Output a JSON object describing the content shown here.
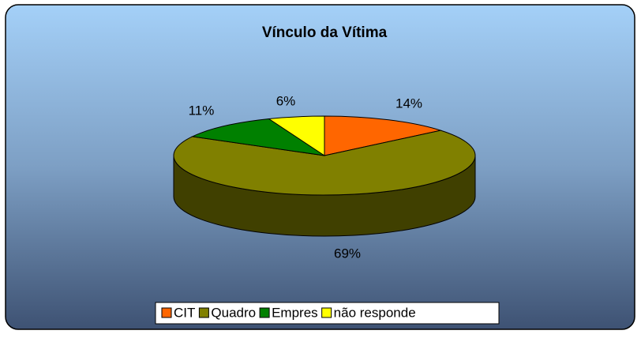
{
  "chart_data": {
    "type": "pie3d",
    "title": "Vínculo da Vítima",
    "categories": [
      "CIT",
      "Quadro",
      "Empres",
      "não responde"
    ],
    "values": [
      14,
      69,
      11,
      6
    ],
    "value_labels": [
      "14%",
      "69%",
      "11%",
      "6%"
    ],
    "colors": [
      "#ff6600",
      "#808000",
      "#008000",
      "#ffff00"
    ],
    "legend": "bottom"
  }
}
